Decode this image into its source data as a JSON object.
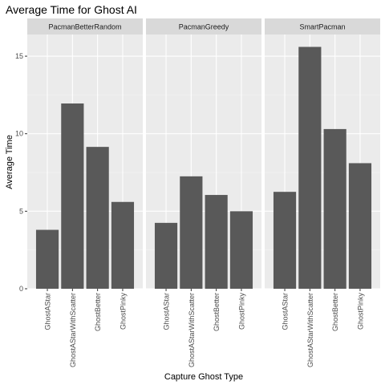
{
  "chart_data": {
    "type": "bar",
    "title": "Average Time for Ghost AI",
    "xlabel": "Capture Ghost Type",
    "ylabel": "Average Time",
    "categories": [
      "GhostAStar",
      "GhostAStarWithScatter",
      "GhostBetter",
      "GhostPinky"
    ],
    "ylim": [
      0,
      16.4
    ],
    "yticks": [
      0,
      5,
      10,
      15
    ],
    "grid": true,
    "legend": "none",
    "facets": [
      {
        "name": "PacmanBetterRandom",
        "values": [
          3.8,
          11.95,
          9.15,
          5.6
        ]
      },
      {
        "name": "PacmanGreedy",
        "values": [
          4.25,
          7.25,
          6.05,
          5.0
        ]
      },
      {
        "name": "SmartPacman",
        "values": [
          6.25,
          15.6,
          10.3,
          8.1
        ]
      }
    ],
    "colors": {
      "bar": "#595959",
      "panel": "#ebebeb",
      "strip": "#d9d9d9",
      "grid_major": "#ffffff"
    }
  }
}
